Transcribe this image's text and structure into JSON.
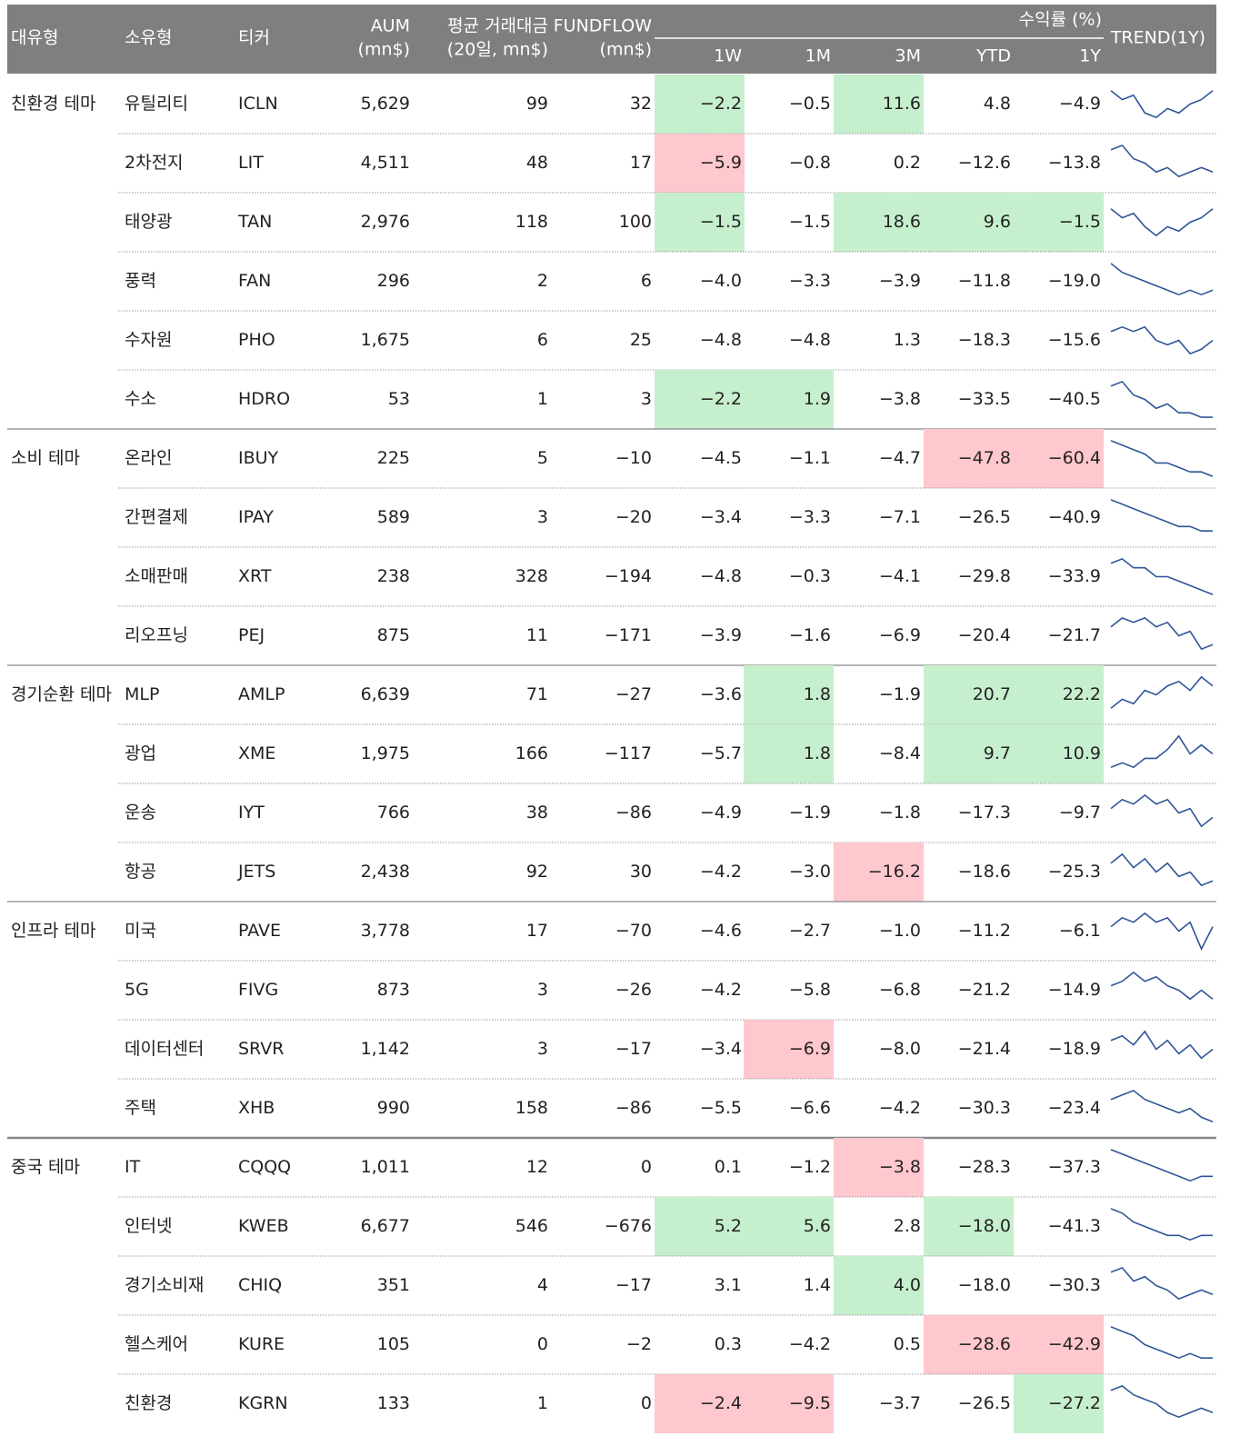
{
  "header": {
    "group": "대유형",
    "sub": "소유형",
    "ticker": "티커",
    "aum": [
      "AUM",
      "(mn$)"
    ],
    "adv": [
      "평균 거래대금",
      "(20일, mn$)"
    ],
    "flow": [
      "FUNDFLOW",
      "(mn$)"
    ],
    "returns_title": "수익률 (%)",
    "periods": [
      "1W",
      "1M",
      "3M",
      "YTD",
      "1Y"
    ],
    "trend": "TREND(1Y)"
  },
  "colors": {
    "g": {
      "bg": "#c6efce",
      "fg": "#2f9a45"
    },
    "r": {
      "bg": "#ffc7ce",
      "fg": "#d1304a"
    },
    "ticker": "#3cb55a",
    "header_bg": "#7f7f7f"
  },
  "table": {
    "rows": [
      {
        "cells": [
          "친환경 테마",
          "유틸리티",
          "ICLN",
          "5,629",
          "99",
          "32",
          "−2.2",
          "−0.5",
          "11.6",
          "4.8",
          "−4.9"
        ],
        "hl": [
          "g",
          null,
          "g",
          null,
          null
        ],
        "trend": [
          8,
          6,
          7,
          3,
          2,
          4,
          3,
          5,
          6,
          8
        ]
      },
      {
        "cells": [
          null,
          "2차전지",
          "LIT",
          "4,511",
          "48",
          "17",
          "−5.9",
          "−0.8",
          "0.2",
          "−12.6",
          "−13.8"
        ],
        "hl": [
          "r",
          null,
          null,
          null,
          null
        ],
        "trend": [
          8,
          9,
          6,
          5,
          3,
          4,
          2,
          3,
          4,
          3
        ]
      },
      {
        "cells": [
          null,
          "태양광",
          "TAN",
          "2,976",
          "118",
          "100",
          "−1.5",
          "−1.5",
          "18.6",
          "9.6",
          "−1.5"
        ],
        "hl": [
          "g",
          null,
          "g",
          "g",
          "g"
        ],
        "trend": [
          8,
          6,
          7,
          4,
          2,
          4,
          3,
          5,
          6,
          8
        ]
      },
      {
        "cells": [
          null,
          "풍력",
          "FAN",
          "296",
          "2",
          "6",
          "−4.0",
          "−3.3",
          "−3.9",
          "−11.8",
          "−19.0"
        ],
        "hl": [
          null,
          null,
          null,
          null,
          null
        ],
        "trend": [
          9,
          7,
          6,
          5,
          4,
          3,
          2,
          3,
          2,
          3
        ]
      },
      {
        "cells": [
          null,
          "수자원",
          "PHO",
          "1,675",
          "6",
          "25",
          "−4.8",
          "−4.8",
          "1.3",
          "−18.3",
          "−15.6"
        ],
        "hl": [
          null,
          null,
          null,
          null,
          null
        ],
        "trend": [
          7,
          8,
          7,
          8,
          5,
          4,
          5,
          2,
          3,
          5
        ]
      },
      {
        "cells": [
          null,
          "수소",
          "HDRO",
          "53",
          "1",
          "3",
          "−2.2",
          "1.9",
          "−3.8",
          "−33.5",
          "−40.5"
        ],
        "hl": [
          "g",
          "g",
          null,
          null,
          null
        ],
        "trend": [
          8,
          9,
          6,
          5,
          3,
          4,
          2,
          2,
          1,
          1
        ]
      },
      {
        "cells": [
          "소비 테마",
          "온라인",
          "IBUY",
          "225",
          "5",
          "−10",
          "−4.5",
          "−1.1",
          "−4.7",
          "−47.8",
          "−60.4"
        ],
        "hl": [
          null,
          null,
          null,
          "r",
          "r"
        ],
        "trend": [
          9,
          8,
          7,
          6,
          4,
          4,
          3,
          2,
          2,
          1
        ]
      },
      {
        "cells": [
          null,
          "간편결제",
          "IPAY",
          "589",
          "3",
          "−20",
          "−3.4",
          "−3.3",
          "−7.1",
          "−26.5",
          "−40.9"
        ],
        "hl": [
          null,
          null,
          null,
          null,
          null
        ],
        "trend": [
          9,
          8,
          7,
          6,
          5,
          4,
          3,
          3,
          2,
          2
        ]
      },
      {
        "cells": [
          null,
          "소매판매",
          "XRT",
          "238",
          "328",
          "−194",
          "−4.8",
          "−0.3",
          "−4.1",
          "−29.8",
          "−33.9"
        ],
        "hl": [
          null,
          null,
          null,
          null,
          null
        ],
        "trend": [
          8,
          9,
          7,
          7,
          5,
          5,
          4,
          3,
          2,
          1
        ]
      },
      {
        "cells": [
          null,
          "리오프닝",
          "PEJ",
          "875",
          "11",
          "−171",
          "−3.9",
          "−1.6",
          "−6.9",
          "−20.4",
          "−21.7"
        ],
        "hl": [
          null,
          null,
          null,
          null,
          null
        ],
        "trend": [
          7,
          9,
          8,
          9,
          7,
          8,
          5,
          6,
          2,
          3
        ]
      },
      {
        "cells": [
          "경기순환 테마",
          "MLP",
          "AMLP",
          "6,639",
          "71",
          "−27",
          "−3.6",
          "1.8",
          "−1.9",
          "20.7",
          "22.2"
        ],
        "hl": [
          null,
          "g",
          null,
          "g",
          "g"
        ],
        "trend": [
          2,
          4,
          3,
          6,
          5,
          7,
          8,
          6,
          9,
          7
        ]
      },
      {
        "cells": [
          null,
          "광업",
          "XME",
          "1,975",
          "166",
          "−117",
          "−5.7",
          "1.8",
          "−8.4",
          "9.7",
          "10.9"
        ],
        "hl": [
          null,
          "g",
          null,
          "g",
          "g"
        ],
        "trend": [
          2,
          3,
          2,
          4,
          4,
          6,
          9,
          5,
          7,
          5
        ]
      },
      {
        "cells": [
          null,
          "운송",
          "IYT",
          "766",
          "38",
          "−86",
          "−4.9",
          "−1.9",
          "−1.8",
          "−17.3",
          "−9.7"
        ],
        "hl": [
          null,
          null,
          null,
          null,
          null
        ],
        "trend": [
          6,
          8,
          7,
          9,
          7,
          8,
          5,
          6,
          2,
          4
        ]
      },
      {
        "cells": [
          null,
          "항공",
          "JETS",
          "2,438",
          "92",
          "30",
          "−4.2",
          "−3.0",
          "−16.2",
          "−18.6",
          "−25.3"
        ],
        "hl": [
          null,
          null,
          "r",
          null,
          null
        ],
        "trend": [
          7,
          9,
          6,
          8,
          5,
          7,
          4,
          5,
          2,
          3
        ]
      },
      {
        "cells": [
          "인프라 테마",
          "미국",
          "PAVE",
          "3,778",
          "17",
          "−70",
          "−4.6",
          "−2.7",
          "−1.0",
          "−11.2",
          "−6.1"
        ],
        "hl": [
          null,
          null,
          null,
          null,
          null
        ],
        "trend": [
          6,
          8,
          7,
          9,
          7,
          8,
          5,
          7,
          1,
          6
        ]
      },
      {
        "cells": [
          null,
          "5G",
          "FIVG",
          "873",
          "3",
          "−26",
          "−4.2",
          "−5.8",
          "−6.8",
          "−21.2",
          "−14.9"
        ],
        "hl": [
          null,
          null,
          null,
          null,
          null
        ],
        "trend": [
          6,
          7,
          9,
          7,
          8,
          6,
          5,
          3,
          5,
          3
        ]
      },
      {
        "cells": [
          null,
          "데이터센터",
          "SRVR",
          "1,142",
          "3",
          "−17",
          "−3.4",
          "−6.9",
          "−8.0",
          "−21.4",
          "−18.9"
        ],
        "hl": [
          null,
          "r",
          null,
          null,
          null
        ],
        "trend": [
          7,
          8,
          6,
          9,
          5,
          7,
          4,
          6,
          3,
          5
        ]
      },
      {
        "cells": [
          null,
          "주택",
          "XHB",
          "990",
          "158",
          "−86",
          "−5.5",
          "−6.6",
          "−4.2",
          "−30.3",
          "−23.4"
        ],
        "hl": [
          null,
          null,
          null,
          null,
          null
        ],
        "trend": [
          7,
          8,
          9,
          7,
          6,
          5,
          4,
          5,
          3,
          2
        ]
      },
      {
        "cells": [
          "중국 테마",
          "IT",
          "CQQQ",
          "1,011",
          "12",
          "0",
          "0.1",
          "−1.2",
          "−3.8",
          "−28.3",
          "−37.3"
        ],
        "hl": [
          null,
          null,
          "r",
          null,
          null
        ],
        "trend": [
          9,
          8,
          7,
          6,
          5,
          4,
          3,
          2,
          3,
          3
        ]
      },
      {
        "cells": [
          null,
          "인터넷",
          "KWEB",
          "6,677",
          "546",
          "−676",
          "5.2",
          "5.6",
          "2.8",
          "−18.0",
          "−41.3"
        ],
        "hl": [
          "g",
          "g",
          null,
          "g",
          null
        ],
        "trend": [
          9,
          8,
          6,
          5,
          4,
          3,
          3,
          2,
          3,
          3
        ]
      },
      {
        "cells": [
          null,
          "경기소비재",
          "CHIQ",
          "351",
          "4",
          "−17",
          "3.1",
          "1.4",
          "4.0",
          "−18.0",
          "−30.3"
        ],
        "hl": [
          null,
          null,
          "g",
          null,
          null
        ],
        "trend": [
          8,
          9,
          6,
          7,
          5,
          4,
          2,
          3,
          4,
          3
        ]
      },
      {
        "cells": [
          null,
          "헬스케어",
          "KURE",
          "105",
          "0",
          "−2",
          "0.3",
          "−4.2",
          "0.5",
          "−28.6",
          "−42.9"
        ],
        "hl": [
          null,
          null,
          null,
          "r",
          "r"
        ],
        "trend": [
          9,
          8,
          7,
          5,
          4,
          3,
          2,
          3,
          2,
          2
        ]
      },
      {
        "cells": [
          null,
          "친환경",
          "KGRN",
          "133",
          "1",
          "0",
          "−2.4",
          "−9.5",
          "−3.7",
          "−26.5",
          "−27.2"
        ],
        "hl": [
          "r",
          "r",
          null,
          null,
          "g"
        ],
        "trend": [
          8,
          9,
          7,
          6,
          5,
          3,
          2,
          3,
          4,
          3
        ]
      }
    ]
  }
}
